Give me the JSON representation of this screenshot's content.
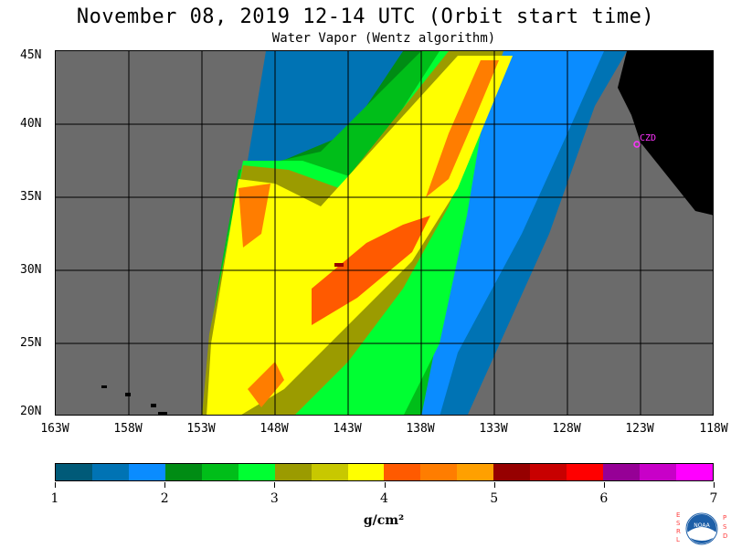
{
  "title": "November 08, 2019  12-14 UTC  (Orbit start time)",
  "subtitle": "Water Vapor (Wentz algorithm)",
  "lat_labels": [
    "45N",
    "40N",
    "35N",
    "30N",
    "25N",
    "20N"
  ],
  "lon_labels": [
    "163W",
    "158W",
    "153W",
    "148W",
    "143W",
    "138W",
    "133W",
    "128W",
    "123W",
    "118W"
  ],
  "colorbar": {
    "colors": [
      "#005a78",
      "#0073b4",
      "#0a8cff",
      "#008c14",
      "#00be19",
      "#00ff32",
      "#9b9b00",
      "#c8c800",
      "#ffff00",
      "#ff5a00",
      "#ff7d00",
      "#ffa000",
      "#960000",
      "#c80000",
      "#ff0000",
      "#960096",
      "#c800c8",
      "#ff00ff"
    ],
    "labels": [
      "1",
      "2",
      "3",
      "4",
      "5",
      "6",
      "7"
    ],
    "units": "g/cm²"
  },
  "place_label": "CZD",
  "logo": {
    "left_text": "ESRL",
    "right_text": "PSD",
    "center": "NOAA"
  }
}
